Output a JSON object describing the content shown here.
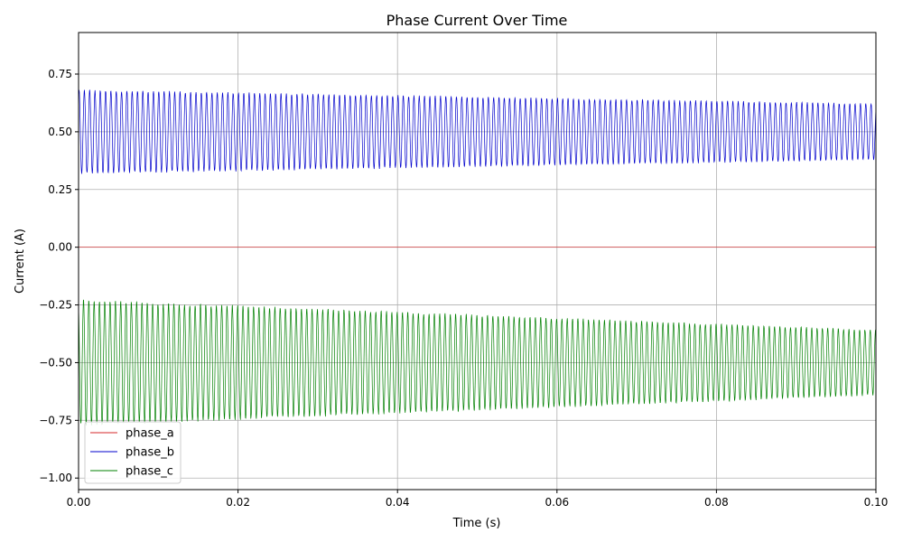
{
  "chart_data": {
    "type": "line",
    "title": "Phase Current Over Time",
    "xlabel": "Time (s)",
    "ylabel": "Current (A)",
    "xlim": [
      0.0,
      0.1
    ],
    "ylim": [
      -1.05,
      0.93
    ],
    "x_ticks": [
      0.0,
      0.02,
      0.04,
      0.06,
      0.08,
      0.1
    ],
    "x_tick_labels": [
      "0.00",
      "0.02",
      "0.04",
      "0.06",
      "0.08",
      "0.10"
    ],
    "y_ticks": [
      0.75,
      0.5,
      0.25,
      0.0,
      -0.25,
      -0.5,
      -0.75,
      -1.0
    ],
    "y_tick_labels": [
      "0.75",
      "0.50",
      "0.25",
      "0.00",
      "−0.25",
      "−0.50",
      "−0.75",
      "−1.00"
    ],
    "grid": true,
    "legend_position": "lower-left",
    "series": [
      {
        "name": "phase_a",
        "color": "#d62728",
        "waveform": "constant",
        "offset": 0.0,
        "amplitude_start": 0.0,
        "amplitude_end": 0.0,
        "cycles": 0
      },
      {
        "name": "phase_b",
        "color": "#0000cc",
        "waveform": "oscillation",
        "offset": 0.5,
        "amplitude_start": 0.18,
        "amplitude_end": 0.12,
        "cycles": 150
      },
      {
        "name": "phase_c",
        "color": "#008000",
        "waveform": "oscillation",
        "offset": -0.5,
        "amplitude_start": 0.27,
        "amplitude_end": 0.14,
        "cycles": 150
      }
    ]
  }
}
